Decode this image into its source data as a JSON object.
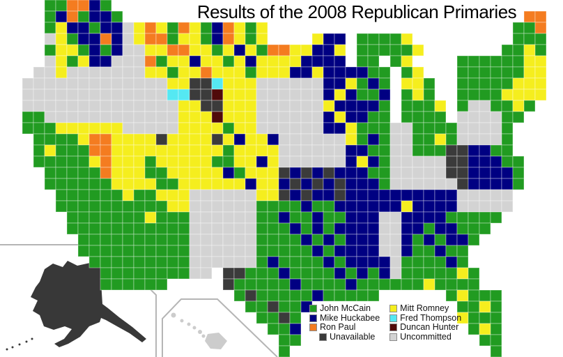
{
  "title": "Results of the 2008 Republican Primaries",
  "legend": {
    "columns": [
      {
        "items": [
          {
            "label": "John McCain",
            "color": "#219b21",
            "indent": false
          },
          {
            "label": "Mike Huckabee",
            "color": "#000082",
            "indent": false
          },
          {
            "label": "Ron Paul",
            "color": "#f47c20",
            "indent": false
          },
          {
            "label": "Unavailable",
            "color": "#3b3b3b",
            "indent": true
          }
        ]
      },
      {
        "items": [
          {
            "label": "Mitt Romney",
            "color": "#f5ee1e",
            "indent": false
          },
          {
            "label": "Fred Thompson",
            "color": "#55e8f2",
            "indent": false
          },
          {
            "label": "Duncan Hunter",
            "color": "#500a0a",
            "indent": false
          },
          {
            "label": "Uncommitted",
            "color": "#d3d3d3",
            "indent": false
          }
        ]
      }
    ]
  },
  "map": {
    "cell_size": 16,
    "cell_stroke": "rgba(255,255,255,0.38)",
    "palette": {
      "G": "#219b21",
      "N": "#000082",
      "O": "#f47c20",
      "Y": "#f5ee1e",
      "C": "#55e8f2",
      "M": "#500a0a",
      "D": "#3b3b3b",
      "U": "#d3d3d3"
    },
    "palette_meaning": {
      "G": "John McCain",
      "N": "Mike Huckabee",
      "O": "Ron Paul",
      "Y": "Mitt Romney",
      "C": "Fred Thompson",
      "M": "Duncan Hunter",
      "D": "Unavailable",
      "U": "Uncommitted"
    },
    "rows": [
      "....GGOONG........................................",
      "....GNOGNNG....................................OO.",
      "....GYNNGNNUYOYGOYGNOYGY......................GGO.",
      "....UYGNNONUYOOGYYGNOYGY....YNN.GGGGY.........GGG.",
      "....GYYGNGNUUYYOOYYGYNYGOOYYNNY.GGGGGY.......GGYG.",
      "....UYGYNNUUUOGYYNYYGYNYYYYNNNN.GG.GY....GGGGGGYY.",
      "...UUYUUUUUUUYYGYYOYYYGYYYNNYNNNNGG.GY...GGGGGGYY.",
      "..UUUUUUUUUUUUUYYDDCYYYUUUUUUNNYGNG.YYG..GGGGGYYY.",
      "..UUUUUUUUUUUUUCCDDMYYYUUUUUUNYNGGN.GYG..GGGGYYYY.",
      "..UUUUUUUUUUUUUUYYDDYYYUUUUUUYNNNNG.GGGY.GUUGGYG..",
      "..GGUUUUUUUUUUUUYYYMYYYUUUUUUNYNNGG.GGGG.UUUUGG...",
      "..GGGYYYYYYUUUUUYYYYGYYUUUUUUNNYGGGUUGGGGUUUUG....",
      "...GGGGYOOYYYYDYYYYDYNYYNUUUUUUYGNGUUGGYGUUUUG....",
      "...GYGGGOOYYYYYYYYYYGYYYYUUUUUUNNGGUUGGGDDNNGG....",
      "...GGGGGYOYYYGYYYYYGGYYNYUUUUUUNYNGUUUUUDDNNNGG...",
      "....GGGGGOYYYGGYYYYYNGYYYDNDNDNNNGGUUUUUDDNNNNG...",
      "....GGGGGGYYYYGGYYYYYYNYYNDNDNDNNNGUUUUUUDNNNNG...",
      ".....GGGGGGYGGYYYUUUUUUYYDNDNNDNNNNNNNNNNUUUUU....",
      ".....GGGGGGGGGGYYUUUUUUGGGGNGGNNNNNNYNNNNUUUUU....",
      "......GGGGGGGYGGGUUUUUUGGNGGNGGNNNUUNNNNGGGGG.....",
      "......GGGGGGGGGGGUUUUUUGGGNGNGNNNNUUNNGNNGGG......",
      ".......GGGGGGGGGGUUUUUUGGGGNGNGNNNUUNGNGNNG.......",
      ".......GGGGGGGGGGUUUUUUGGGGGNGNNNNUUNGGNGG........",
      "........GGGGGGGGGUUUUUUGNGGGGNGNNNNUGGGGNG........",
      ".........GGGGGGGGUU.DDGGGNGGGGNGNGNUGGGGGYG.......",
      ".........GGGGGG.....DGGGGGNGGGGNGGGGGGYGGGG.......",
      ".....................GDGGGGGNGGGGG......GYGGG.....",
      "......................GGDGGN.............GGYG.....",
      ".......................GGDG..............YGGG.....",
      "........................GGN...............GYG.....",
      ".........................GG................GG.....",
      ".........................G..................G....."
    ],
    "insets": {
      "alaska_fill": "#383838",
      "hawaii_fill": "#cccccc",
      "border_color": "#b5b5b5"
    }
  }
}
